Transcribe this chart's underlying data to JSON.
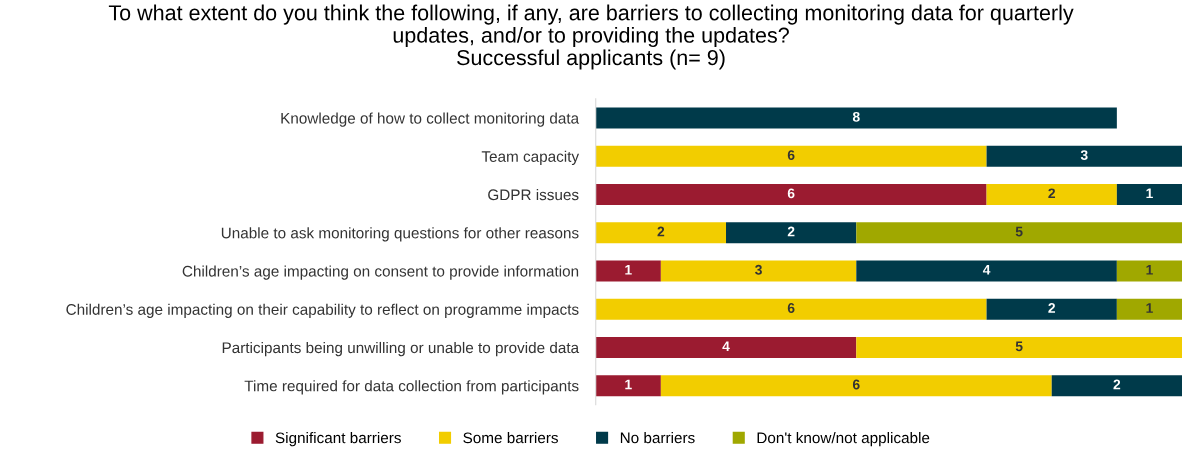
{
  "chart_data": {
    "type": "bar",
    "orientation": "horizontal",
    "stacked": true,
    "data_labels": true,
    "tick_labels": "y",
    "grid": false,
    "legend": "bottom",
    "title": "To what extent do you think the following, if any, are barriers to collecting monitoring data for quarterly\nupdates, and/or to providing the updates?\nSuccessful applicants (n= 9)",
    "categories": [
      "Knowledge of how to collect monitoring data",
      "Team capacity",
      "GDPR issues",
      "Unable to ask monitoring questions for other reasons",
      "Children’s age impacting on consent to provide information",
      "Children’s age impacting on their capability to reflect on programme impacts",
      "Participants being unwilling or unable to provide data",
      "Time required for data collection from participants"
    ],
    "series": [
      {
        "name": "Significant barriers",
        "color": "#9b1b30",
        "values": [
          null,
          null,
          6,
          null,
          1,
          null,
          4,
          1
        ]
      },
      {
        "name": "Some barriers",
        "color": "#f2cd00",
        "values": [
          null,
          6,
          2,
          2,
          3,
          6,
          5,
          6
        ]
      },
      {
        "name": "No barriers",
        "color": "#003a4a",
        "values": [
          8,
          3,
          1,
          2,
          4,
          2,
          null,
          2
        ]
      },
      {
        "name": "Don't know/not applicable",
        "color": "#a0a800",
        "values": [
          null,
          null,
          null,
          5,
          1,
          1,
          null,
          null
        ]
      }
    ]
  }
}
